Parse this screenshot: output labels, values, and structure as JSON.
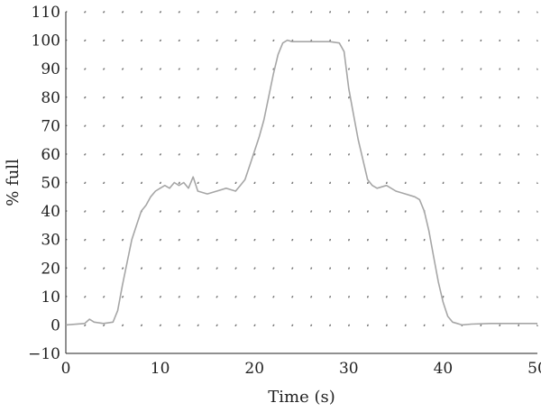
{
  "chart_data": {
    "type": "line",
    "title": "",
    "xlabel": "Time (s)",
    "ylabel": "% full",
    "xlim": [
      0,
      50
    ],
    "ylim": [
      -10,
      110
    ],
    "xticks": [
      0,
      10,
      20,
      30,
      40,
      50
    ],
    "yticks": [
      -10,
      0,
      10,
      20,
      30,
      40,
      50,
      60,
      70,
      80,
      90,
      100,
      110
    ],
    "grid": "dotted",
    "line_color": "#a6a6a6",
    "series": [
      {
        "name": "",
        "x": [
          0,
          2,
          2.5,
          3,
          4,
          5,
          5.5,
          6,
          6.5,
          7,
          7.5,
          8,
          8.5,
          9,
          9.5,
          10,
          10.5,
          11,
          11.5,
          12,
          12.5,
          13,
          13.5,
          14,
          15,
          16,
          17,
          18,
          18.5,
          19,
          19.5,
          20,
          20.5,
          21,
          21.5,
          22,
          22.5,
          23,
          23.5,
          24,
          25,
          26,
          27,
          28,
          29,
          29.5,
          30,
          30.5,
          31,
          31.5,
          32,
          32.5,
          33,
          34,
          35,
          36,
          37,
          37.5,
          38,
          38.5,
          39,
          39.5,
          40,
          40.5,
          41,
          41.5,
          42,
          43,
          45,
          50
        ],
        "y": [
          0,
          0.5,
          2,
          1,
          0.5,
          1,
          5,
          14,
          22,
          30,
          35,
          40,
          42,
          45,
          47,
          48,
          49,
          48,
          50,
          49,
          50,
          48,
          52,
          47,
          46,
          47,
          48,
          47,
          49,
          51,
          56,
          61,
          66,
          72,
          80,
          88,
          95,
          99,
          100,
          99.5,
          99.5,
          99.5,
          99.5,
          99.5,
          99,
          96,
          83,
          74,
          65,
          58,
          51,
          49,
          48,
          49,
          47,
          46,
          45,
          44,
          40,
          33,
          24,
          15,
          8,
          3,
          1,
          0.5,
          0,
          0.3,
          0.5,
          0.5
        ]
      }
    ]
  }
}
